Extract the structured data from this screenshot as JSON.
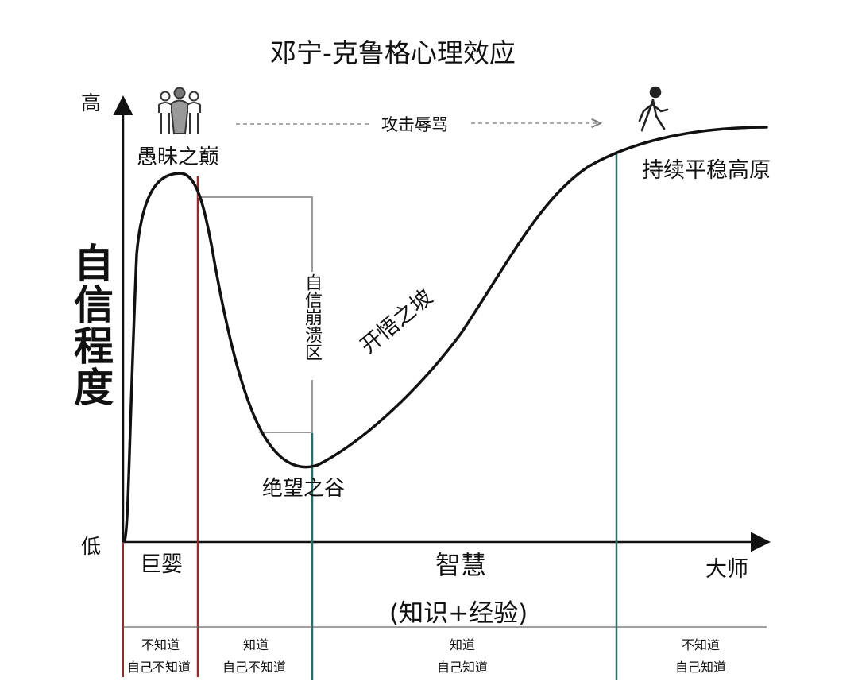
{
  "title": "邓宁-克鲁格心理效应",
  "axes": {
    "y_label": "自信程度",
    "y_high": "高",
    "y_low": "低",
    "x_stages": {
      "baby": "巨婴",
      "wisdom": "智慧",
      "wisdom_sub": "(知识+经验)",
      "master": "大师"
    }
  },
  "curve_labels": {
    "peak": "愚昧之巅",
    "collapse_zone": "自信崩溃区",
    "valley": "绝望之谷",
    "slope": "开悟之坡",
    "plateau": "持续平稳高原",
    "arrow_text": "攻击辱骂"
  },
  "bottom_table": [
    {
      "line1": "不知道",
      "line2": "自己不知道"
    },
    {
      "line1": "知道",
      "line2": "自己不知道"
    },
    {
      "line1": "知道",
      "line2": "自己知道"
    },
    {
      "line1": "不知道",
      "line2": "自己知道"
    }
  ],
  "colors": {
    "curve": "#111111",
    "red_line": "#8b2e2e",
    "teal_line": "#2e6b68",
    "gray_line": "#9a9a9a"
  },
  "icons": [
    "crowd-icon",
    "walking-person-icon"
  ]
}
